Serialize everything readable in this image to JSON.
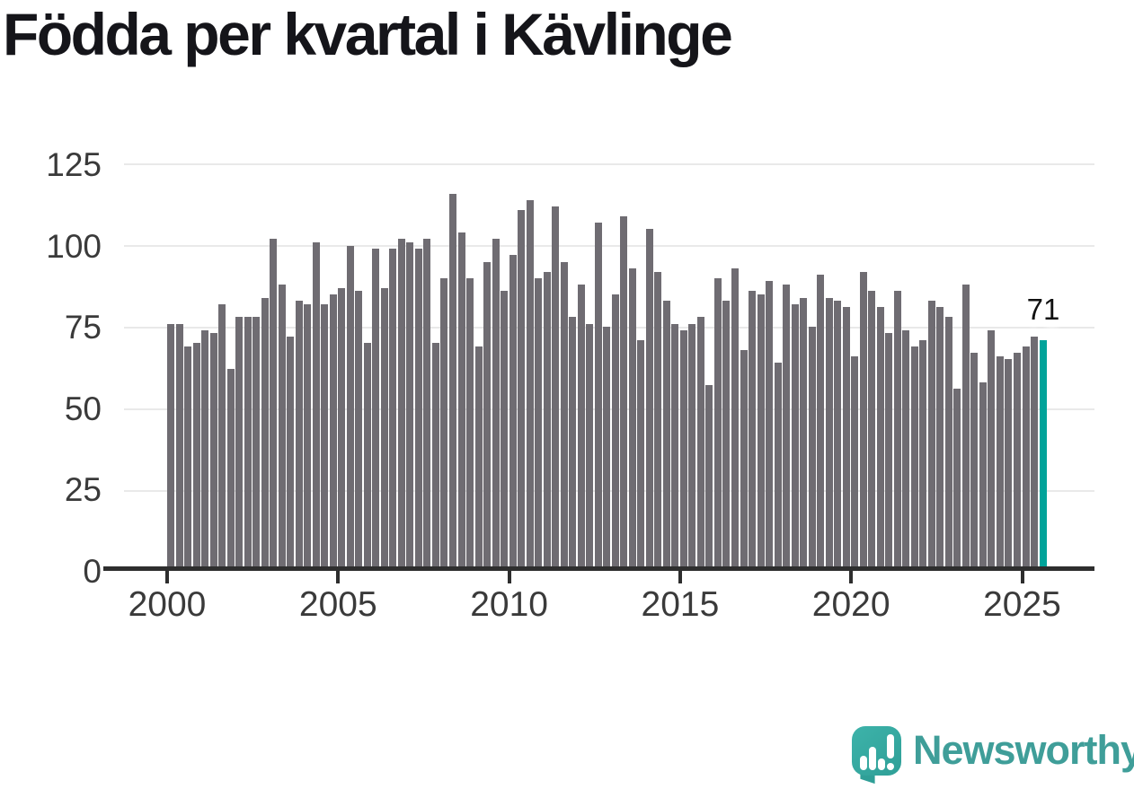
{
  "title": "Födda per kvartal i Kävlinge",
  "annotation": {
    "label": "71"
  },
  "logo": {
    "text": "Newsworthy"
  },
  "chart_data": {
    "type": "bar",
    "title": "Födda per kvartal i Kävlinge",
    "x_unit": "quarter",
    "x_start": "2000 Q1",
    "x_end": "2025 Q3",
    "x_tick_labels": [
      "2000",
      "2005",
      "2010",
      "2015",
      "2020",
      "2025"
    ],
    "y_ticks": [
      0,
      25,
      50,
      75,
      100,
      125
    ],
    "ylim": [
      0,
      125
    ],
    "grid": "horizontal",
    "values": [
      76,
      76,
      69,
      70,
      74,
      73,
      82,
      62,
      78,
      78,
      78,
      84,
      102,
      88,
      72,
      83,
      82,
      101,
      82,
      85,
      87,
      100,
      86,
      70,
      99,
      87,
      99,
      102,
      101,
      99,
      102,
      70,
      90,
      116,
      104,
      90,
      69,
      95,
      102,
      86,
      97,
      111,
      114,
      90,
      92,
      112,
      95,
      78,
      88,
      76,
      107,
      75,
      85,
      109,
      93,
      71,
      105,
      92,
      83,
      76,
      74,
      76,
      78,
      57,
      90,
      83,
      93,
      68,
      86,
      85,
      89,
      64,
      88,
      82,
      84,
      75,
      91,
      84,
      83,
      81,
      66,
      92,
      86,
      81,
      73,
      86,
      74,
      69,
      71,
      83,
      81,
      78,
      56,
      88,
      67,
      58,
      74,
      66,
      65,
      67,
      69,
      72,
      71
    ],
    "highlight_index": 102,
    "highlight_value": 71,
    "colors": {
      "bar": "#6f6c72",
      "highlight": "#00a39a"
    }
  }
}
